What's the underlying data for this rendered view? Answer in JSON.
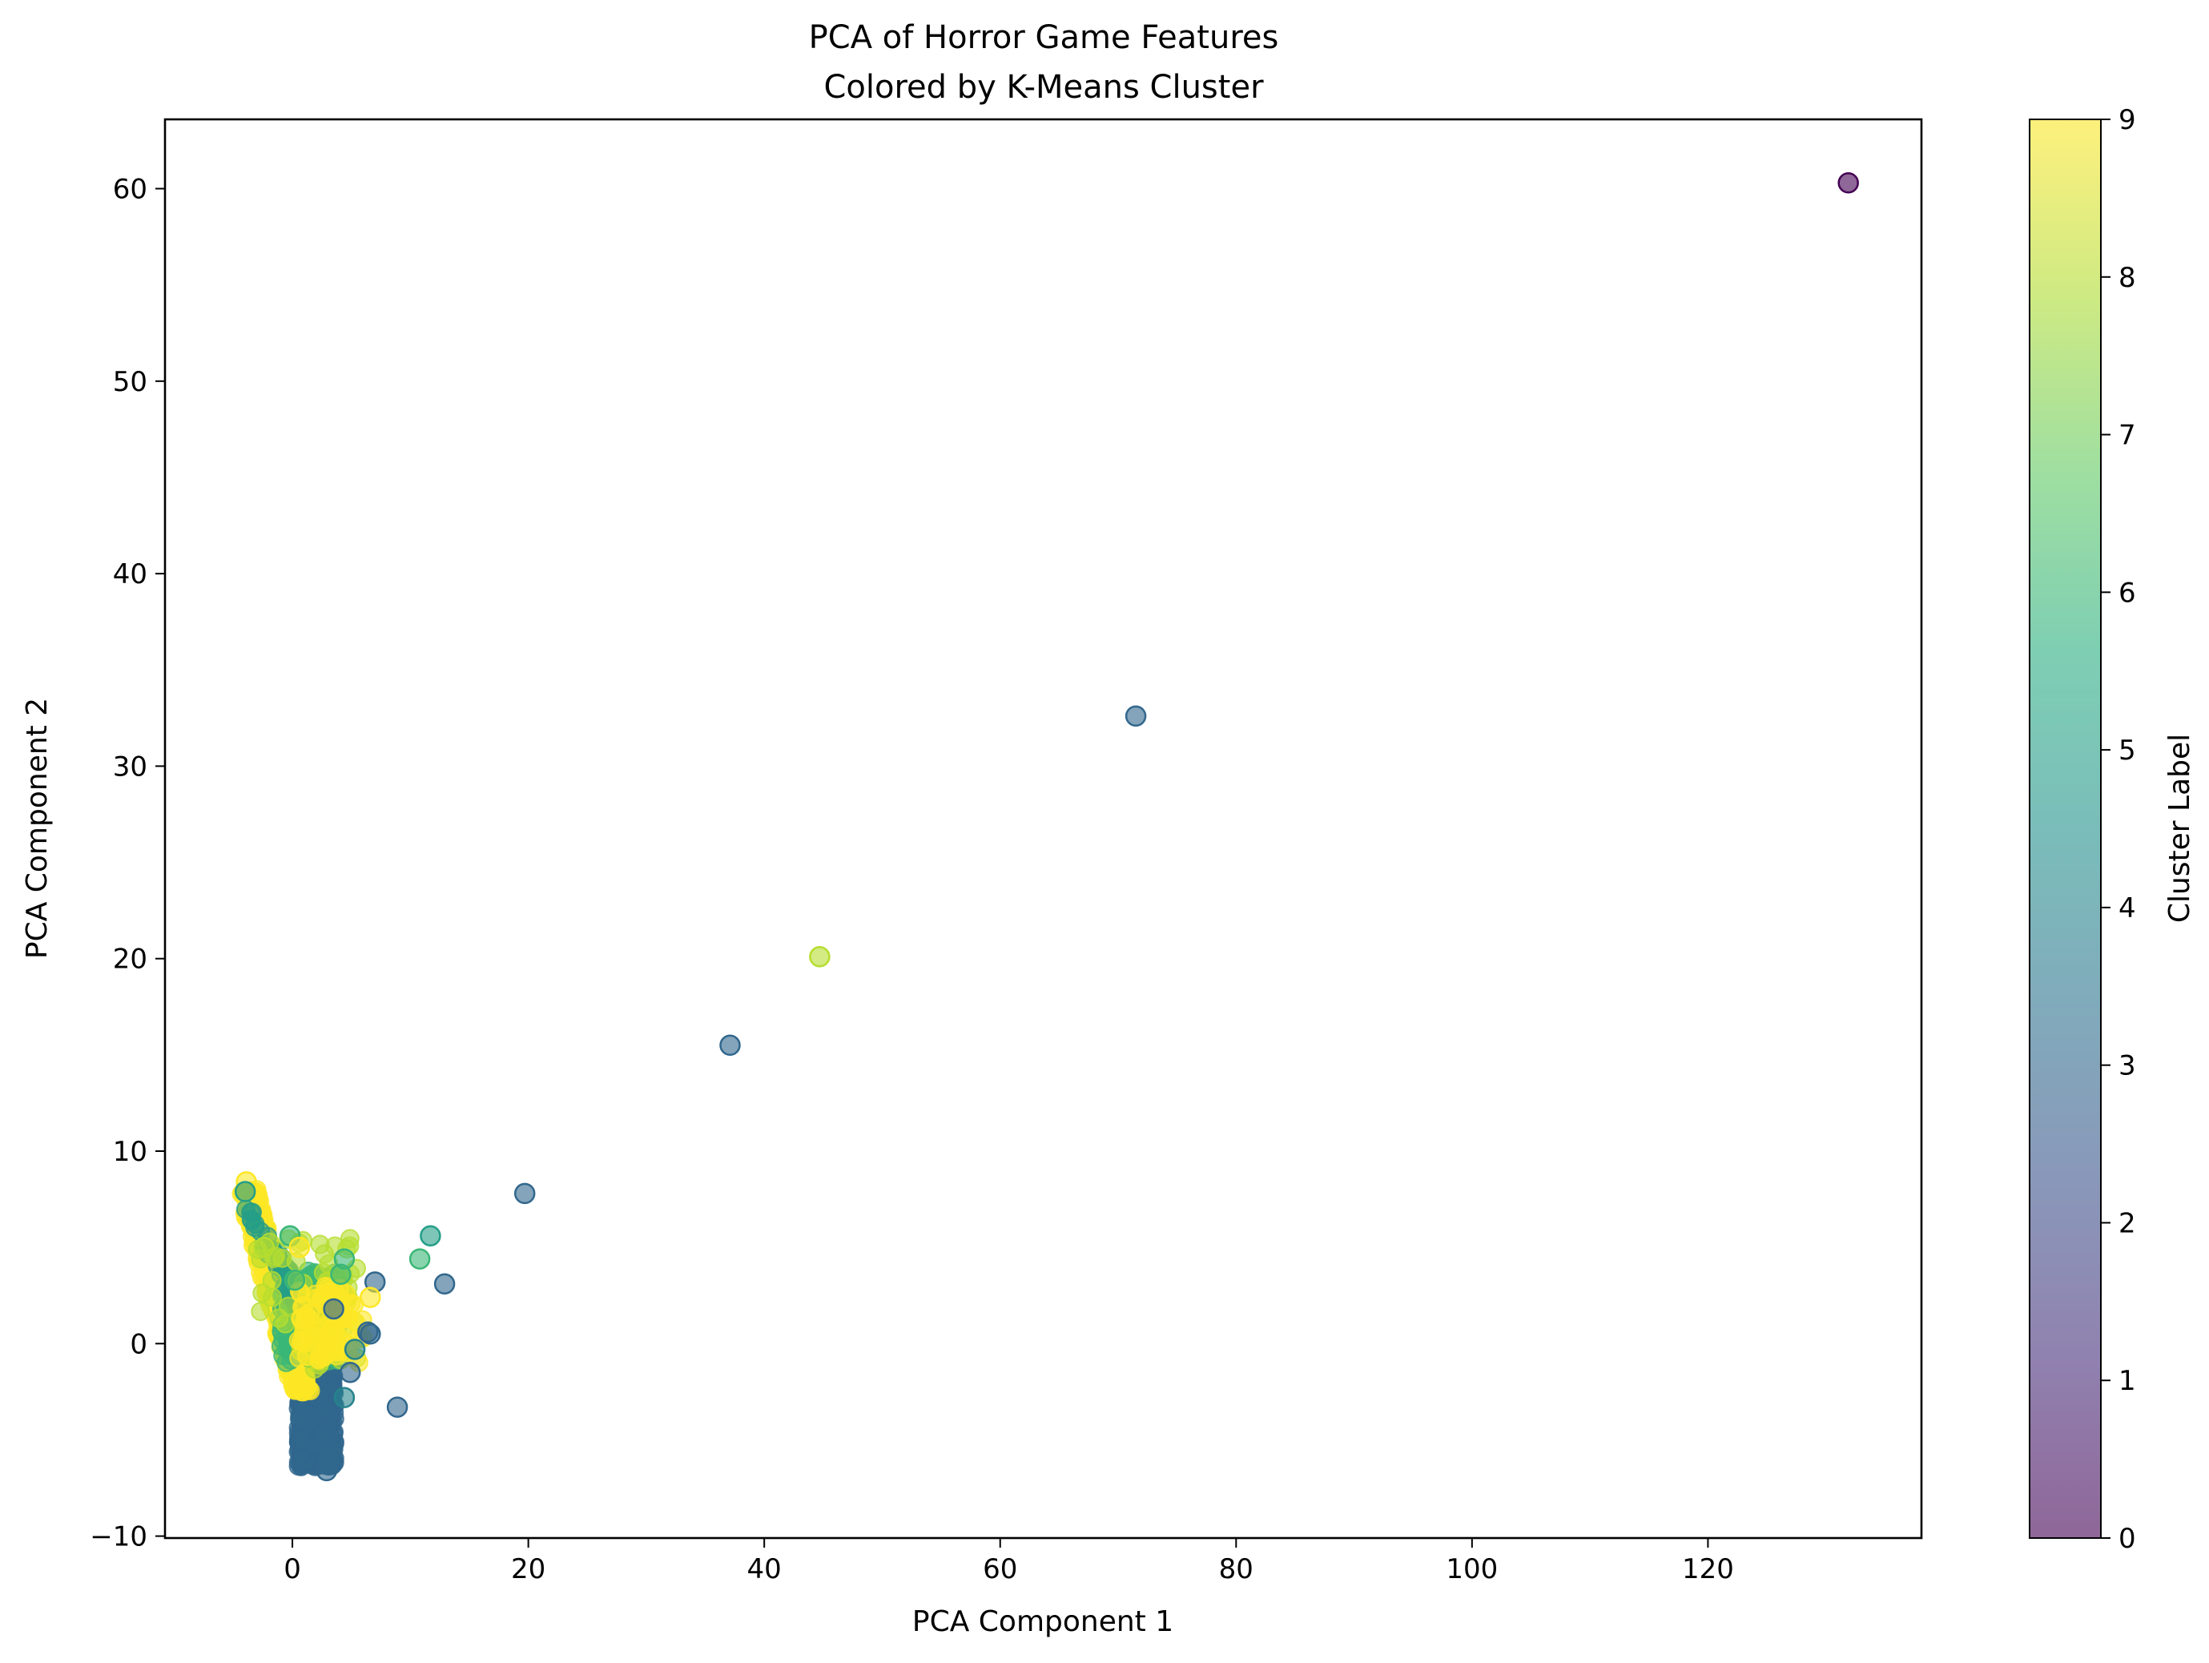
{
  "chart_data": {
    "type": "scatter",
    "title": "PCA of Horror Game Features",
    "subtitle": "Colored by K-Means Cluster",
    "xlabel": "PCA Component 1",
    "ylabel": "PCA Component 2",
    "xlim": [
      -10.8,
      138.1
    ],
    "ylim": [
      -10.1,
      63.6
    ],
    "xticks": [
      0,
      20,
      40,
      60,
      80,
      100,
      120
    ],
    "xtick_labels": [
      "0",
      "20",
      "40",
      "60",
      "80",
      "100",
      "120"
    ],
    "yticks": [
      -10,
      0,
      10,
      20,
      30,
      40,
      50,
      60
    ],
    "ytick_labels": [
      "−10",
      "0",
      "10",
      "20",
      "30",
      "40",
      "50",
      "60"
    ],
    "grid": false,
    "marker_alpha": 0.6,
    "colorbar": {
      "label": "Cluster Label",
      "range": [
        0,
        9
      ],
      "ticks": [
        0,
        1,
        2,
        3,
        4,
        5,
        6,
        7,
        8,
        9
      ],
      "tick_labels": [
        "0",
        "1",
        "2",
        "3",
        "4",
        "5",
        "6",
        "7",
        "8",
        "9"
      ],
      "colormap": "viridis",
      "colormap_stops": [
        "#440154",
        "#472d7b",
        "#3b528b",
        "#2c728e",
        "#21918c",
        "#28ae80",
        "#5ec962",
        "#addc30",
        "#fde725"
      ]
    },
    "points": [
      {
        "x": 131.9,
        "y": 60.3,
        "cluster": 0
      },
      {
        "x": 71.5,
        "y": 32.6,
        "cluster": 3
      },
      {
        "x": 44.7,
        "y": 20.1,
        "cluster": 8
      },
      {
        "x": 37.1,
        "y": 15.5,
        "cluster": 3
      },
      {
        "x": 19.7,
        "y": 7.8,
        "cluster": 3
      },
      {
        "x": 11.7,
        "y": 5.6,
        "cluster": 5
      },
      {
        "x": 10.8,
        "y": 4.4,
        "cluster": 6
      },
      {
        "x": 12.9,
        "y": 3.1,
        "cluster": 3
      },
      {
        "x": 8.9,
        "y": -3.3,
        "cluster": 3
      },
      {
        "x": 7.0,
        "y": 3.2,
        "cluster": 3
      },
      {
        "x": 6.4,
        "y": 0.6,
        "cluster": 3
      },
      {
        "x": 6.6,
        "y": 0.5,
        "cluster": 3
      },
      {
        "x": 6.6,
        "y": 2.4,
        "cluster": 9
      },
      {
        "x": 5.3,
        "y": -0.3,
        "cluster": 4
      },
      {
        "x": 4.9,
        "y": -1.5,
        "cluster": 3
      },
      {
        "x": 4.4,
        "y": -2.8,
        "cluster": 4
      },
      {
        "x": 4.4,
        "y": 4.4,
        "cluster": 6
      },
      {
        "x": 4.1,
        "y": 3.6,
        "cluster": 6
      },
      {
        "x": 3.5,
        "y": 1.8,
        "cluster": 3
      },
      {
        "x": -0.2,
        "y": 5.6,
        "cluster": 6
      },
      {
        "x": 0.6,
        "y": 5.0,
        "cluster": 9
      },
      {
        "x": -3.9,
        "y": 8.4,
        "cluster": 9
      },
      {
        "x": -4.0,
        "y": 7.9,
        "cluster": 5
      },
      {
        "x": 0.2,
        "y": 3.3,
        "cluster": 6
      },
      {
        "x": -2.4,
        "y": 5.0,
        "cluster": 8
      },
      {
        "x": 2.9,
        "y": -6.6,
        "cluster": 3
      },
      {
        "x": 3.1,
        "y": -6.3,
        "cluster": 3
      },
      {
        "x": 3.3,
        "y": -5.8,
        "cluster": 3
      }
    ]
  }
}
